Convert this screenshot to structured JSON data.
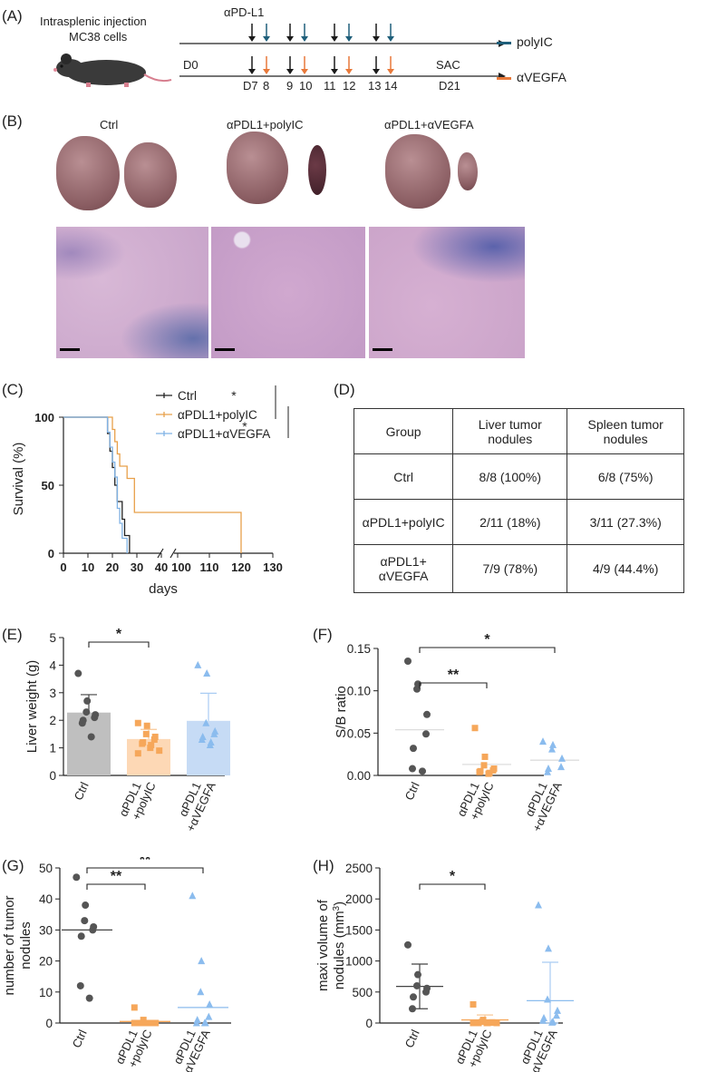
{
  "panel_labels": {
    "A": "(A)",
    "B": "(B)",
    "C": "(C)",
    "D": "(D)",
    "E": "(E)",
    "F": "(F)",
    "G": "(G)",
    "H": "(H)"
  },
  "panelA": {
    "injection_line1": "Intrasplenic injection",
    "injection_line2": "MC38 cells",
    "antibody_label": "αPD-L1",
    "d0": "D0",
    "sac": "SAC",
    "days": [
      "D7",
      "8",
      "9",
      "10",
      "11",
      "12",
      "13",
      "14",
      "D21"
    ],
    "legend_polyic": "polyIC",
    "legend_avegfa": "αVEGFA",
    "color_black": "#1a1a1a",
    "color_blue": "#1f5f7a",
    "color_orange": "#e8793a"
  },
  "panelB": {
    "group_ctrl": "Ctrl",
    "group_polyic": "αPDL1+polyIC",
    "group_avegfa": "αPDL1+αVEGFA"
  },
  "panelC": {
    "ylabel": "Survival (%)",
    "xlabel": "days",
    "yticks": [
      "0",
      "50",
      "100"
    ],
    "xticks": [
      "0",
      "10",
      "20",
      "30",
      "40",
      "100",
      "110",
      "120",
      "130"
    ],
    "legend": [
      "Ctrl",
      "αPDL1+polyIC",
      "αPDL1+αVEGFA"
    ],
    "sig1": "*",
    "sig2": "*"
  },
  "panelD": {
    "headers": [
      "Group",
      "Liver tumor nodules",
      "Spleen tumor nodules"
    ],
    "rows": [
      [
        "Ctrl",
        "8/8 (100%)",
        "6/8 (75%)"
      ],
      [
        "αPDL1+polyIC",
        "2/11 (18%)",
        "3/11 (27.3%)"
      ],
      [
        "αPDL1+ αVEGFA",
        "7/9 (78%)",
        "4/9 (44.4%)"
      ]
    ]
  },
  "chart_data": [
    {
      "panel": "C",
      "type": "line",
      "title": "",
      "xlabel": "days",
      "ylabel": "Survival (%)",
      "ylim": [
        0,
        100
      ],
      "series": [
        {
          "name": "Ctrl",
          "color": "#222222",
          "x": [
            0,
            17,
            18,
            19,
            20,
            21,
            22,
            23,
            24,
            25,
            26,
            27
          ],
          "y": [
            100,
            100,
            88,
            75,
            63,
            50,
            38,
            38,
            25,
            13,
            13,
            0
          ]
        },
        {
          "name": "αPDL1+polyIC",
          "color": "#e8a04a",
          "x": [
            0,
            19,
            20,
            21,
            22,
            23,
            26,
            29,
            120
          ],
          "y": [
            100,
            100,
            91,
            82,
            73,
            64,
            55,
            30,
            0
          ]
        },
        {
          "name": "αPDL1+αVEGFA",
          "color": "#7fb2e5",
          "x": [
            0,
            17,
            18,
            19,
            20,
            21,
            22,
            23,
            24,
            26
          ],
          "y": [
            100,
            100,
            89,
            78,
            67,
            56,
            33,
            22,
            11,
            0
          ]
        }
      ]
    },
    {
      "panel": "E",
      "type": "bar",
      "title": "",
      "ylabel": "Liver weight (g)",
      "yticks": [
        "0",
        "1",
        "2",
        "3",
        "4",
        "5"
      ],
      "ylim": [
        0,
        5
      ],
      "categories": [
        "Ctrl",
        "αPDL1 +polyIC",
        "αPDL1 +αVEGFA"
      ],
      "values": [
        2.28,
        1.32,
        1.98
      ],
      "sd": [
        0.65,
        0.35,
        1.0
      ],
      "colors": [
        "#bfbfbf",
        "#fdd8b5",
        "#c6dbf5"
      ],
      "points": [
        [
          3.7,
          2.7,
          2.3,
          2.2,
          2.1,
          2.0,
          1.9,
          1.4
        ],
        [
          1.9,
          1.8,
          1.5,
          1.4,
          1.3,
          1.2,
          1.15,
          1.1,
          1.0,
          0.9,
          0.8
        ],
        [
          4.0,
          3.7,
          1.9,
          1.6,
          1.5,
          1.4,
          1.3,
          1.2,
          1.1
        ]
      ],
      "significance": [
        {
          "pair": [
            0,
            1
          ],
          "label": "*"
        }
      ]
    },
    {
      "panel": "F",
      "type": "scatter",
      "ylabel": "S/B ratio",
      "yticks": [
        "0.00",
        "0.05",
        "0.10",
        "0.15"
      ],
      "ylim": [
        0,
        0.15
      ],
      "categories": [
        "Ctrl",
        "αPDL1 +polyIC",
        "αPDL1 +αVEGFA"
      ],
      "means": [
        0.054,
        0.013,
        0.018
      ],
      "points": [
        [
          0.135,
          0.108,
          0.102,
          0.072,
          0.049,
          0.032,
          0.008,
          0.005
        ],
        [
          0.056,
          0.022,
          0.012,
          0.008,
          0.006,
          0.005,
          0.004,
          0.003,
          0.002
        ],
        [
          0.04,
          0.036,
          0.031,
          0.02,
          0.01,
          0.008,
          0.004
        ]
      ],
      "significance": [
        {
          "pair": [
            0,
            1
          ],
          "label": "**"
        },
        {
          "pair": [
            0,
            2
          ],
          "label": "*"
        }
      ]
    },
    {
      "panel": "G",
      "type": "scatter",
      "ylabel": "number of tumor nodules",
      "yticks": [
        "0",
        "10",
        "20",
        "30",
        "40",
        "50"
      ],
      "ylim": [
        0,
        50
      ],
      "categories": [
        "Ctrl",
        "αPDL1 +polyIC",
        "αPDL1 +αVEGFA"
      ],
      "means": [
        30,
        0.5,
        5
      ],
      "points": [
        [
          47,
          38,
          33,
          31,
          30,
          28,
          12,
          8
        ],
        [
          5,
          1,
          0,
          0,
          0,
          0,
          0,
          0,
          0,
          0,
          0
        ],
        [
          41,
          20,
          10,
          6,
          2,
          1,
          0,
          0,
          0
        ]
      ],
      "significance": [
        {
          "pair": [
            0,
            1
          ],
          "label": "**"
        },
        {
          "pair": [
            0,
            2
          ],
          "label": "**"
        }
      ]
    },
    {
      "panel": "H",
      "type": "scatter",
      "ylabel": "maxi volume of nodules (mm3)",
      "yticks": [
        "0",
        "500",
        "1000",
        "1500",
        "2000",
        "2500"
      ],
      "ylim": [
        0,
        2500
      ],
      "categories": [
        "Ctrl",
        "αPDL1 +polyIC",
        "αPDL1 +αVEGFA"
      ],
      "means": [
        590,
        50,
        360
      ],
      "sd": [
        360,
        80,
        620
      ],
      "points": [
        [
          1260,
          780,
          600,
          560,
          500,
          420,
          230
        ],
        [
          300,
          50,
          20,
          10,
          5,
          0,
          0,
          0,
          0,
          0,
          0
        ],
        [
          1900,
          1200,
          380,
          200,
          120,
          80,
          40,
          20,
          10
        ]
      ],
      "significance": [
        {
          "pair": [
            0,
            1
          ],
          "label": "*"
        }
      ]
    }
  ]
}
